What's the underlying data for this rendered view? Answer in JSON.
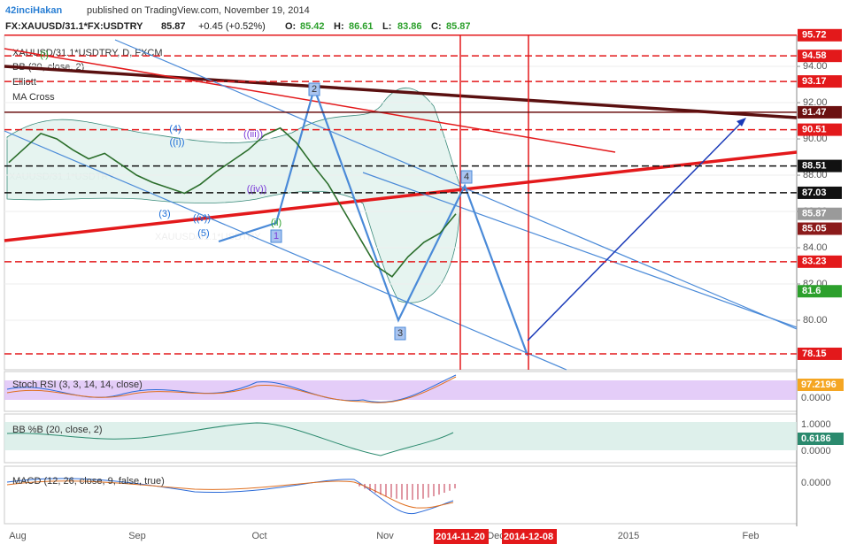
{
  "header": {
    "user": "42inciHakan",
    "published": "published on TradingView.com, November 19, 2014",
    "symbol": "FX:XAUUSD/31.1*FX:USDTRY",
    "last": "85.87",
    "change": "+0.45 (+0.52%)",
    "ohlc": [
      {
        "label": "O:",
        "value": "85.42"
      },
      {
        "label": "H:",
        "value": "86.61"
      },
      {
        "label": "L:",
        "value": "83.86"
      },
      {
        "label": "C:",
        "value": "85.87"
      }
    ]
  },
  "chart_data": {
    "type": "line",
    "title": "XAUUSD/31.1*USDTRY, D, FXCM",
    "watermark": "XAUUSD/31.1*USDTRY",
    "indicators": [
      "BB (20, close, 2)",
      "Elliott",
      "MA Cross"
    ],
    "ylim": [
      77.27,
      95.71
    ],
    "yticks": [
      {
        "value": 80,
        "label": "80.00"
      },
      {
        "value": 82,
        "label": "82.00"
      },
      {
        "value": 84,
        "label": "84.00"
      },
      {
        "value": 86,
        "label": "86.00"
      },
      {
        "value": 88,
        "label": "88.00"
      },
      {
        "value": 90,
        "label": "90.00"
      },
      {
        "value": 92,
        "label": "92.00"
      },
      {
        "value": 94,
        "label": "94.00"
      }
    ],
    "levels": [
      {
        "value": 95.72,
        "color": "#e3191b",
        "dashed": false
      },
      {
        "value": 94.58,
        "color": "#e3191b",
        "dashed": true
      },
      {
        "value": 93.17,
        "color": "#e3191b",
        "dashed": true
      },
      {
        "value": 91.47,
        "color": "#6b1010",
        "dashed": false
      },
      {
        "value": 90.51,
        "color": "#e3191b",
        "dashed": true
      },
      {
        "value": 88.51,
        "color": "#111111",
        "dashed": true
      },
      {
        "value": 87.03,
        "color": "#111111",
        "dashed": true
      },
      {
        "value": 85.87,
        "color": "#9a9a9a",
        "dashed": false
      },
      {
        "value": 85.05,
        "color": "#8b1a1a",
        "dashed": false
      },
      {
        "value": 83.23,
        "color": "#e3191b",
        "dashed": true
      },
      {
        "value": 81.6,
        "color": "#2ca02c",
        "dashed": false
      },
      {
        "value": 78.15,
        "color": "#e3191b",
        "dashed": true
      }
    ],
    "series": [
      {
        "name": "XAUUSD/31.1*USDTRY",
        "color": "#2b6e2b",
        "values": [
          88.7,
          89.5,
          90.3,
          90.0,
          89.4,
          88.9,
          89.2,
          88.6,
          88.0,
          87.6,
          87.3,
          87.0,
          87.5,
          88.2,
          88.8,
          89.4,
          90.2,
          90.6,
          89.8,
          88.6,
          87.5,
          86.0,
          84.5,
          83.0,
          82.4,
          83.5,
          84.3,
          84.8,
          85.87
        ]
      }
    ],
    "waves": [
      "(i)",
      "(4)",
      "((i))",
      "(3)",
      "((v))",
      "(5)",
      "((iii))",
      "((iv))",
      "(ii)",
      "1",
      "2",
      "3",
      "4"
    ],
    "xticks": [
      "Aug",
      "Sep",
      "Oct",
      "Nov",
      "Dec",
      "2015",
      "Feb"
    ],
    "markers": [
      "2014-11-20",
      "2014-12-08"
    ],
    "panels": [
      {
        "title": "Stoch RSI (3, 3, 14, 14, close)",
        "labels": [
          "97.2196",
          "0.0000"
        ]
      },
      {
        "title": "BB %B (20, close, 2)",
        "labels": [
          "1.0000",
          "0.6186",
          "0.0000"
        ]
      },
      {
        "title": "MACD (12, 26, close, 9, false, true)",
        "labels": [
          "0.0000"
        ]
      }
    ]
  }
}
